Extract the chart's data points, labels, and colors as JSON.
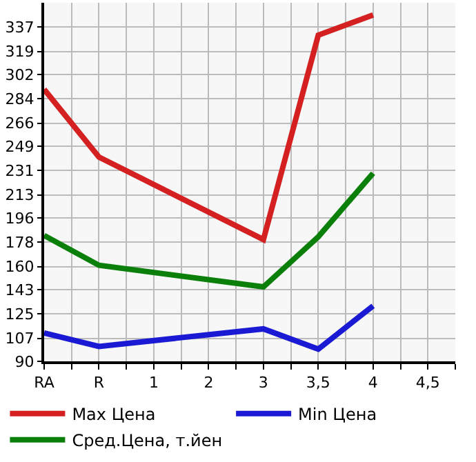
{
  "chart_data": {
    "type": "line",
    "categories": [
      "RA",
      "R",
      "1",
      "2",
      "3",
      "3,5",
      "4",
      "4,5"
    ],
    "series": [
      {
        "name": "Max Цена",
        "color": "#d42020",
        "values": [
          291,
          241,
          null,
          null,
          180,
          331,
          346,
          null
        ]
      },
      {
        "name": "Min Цена",
        "color": "#1a1ad4",
        "values": [
          111,
          101,
          null,
          null,
          114,
          99,
          131,
          null
        ]
      },
      {
        "name": "Сред.Цена, т.йен",
        "color": "#0a800a",
        "values": [
          183,
          161,
          null,
          null,
          145,
          182,
          229,
          null
        ]
      }
    ],
    "ylim": [
      90,
      355
    ],
    "yticks": [
      90,
      107,
      125,
      143,
      160,
      178,
      196,
      213,
      231,
      249,
      266,
      284,
      302,
      319,
      337
    ],
    "grid": true,
    "legend": "bottom",
    "marker": "none",
    "line_style": "solid"
  }
}
